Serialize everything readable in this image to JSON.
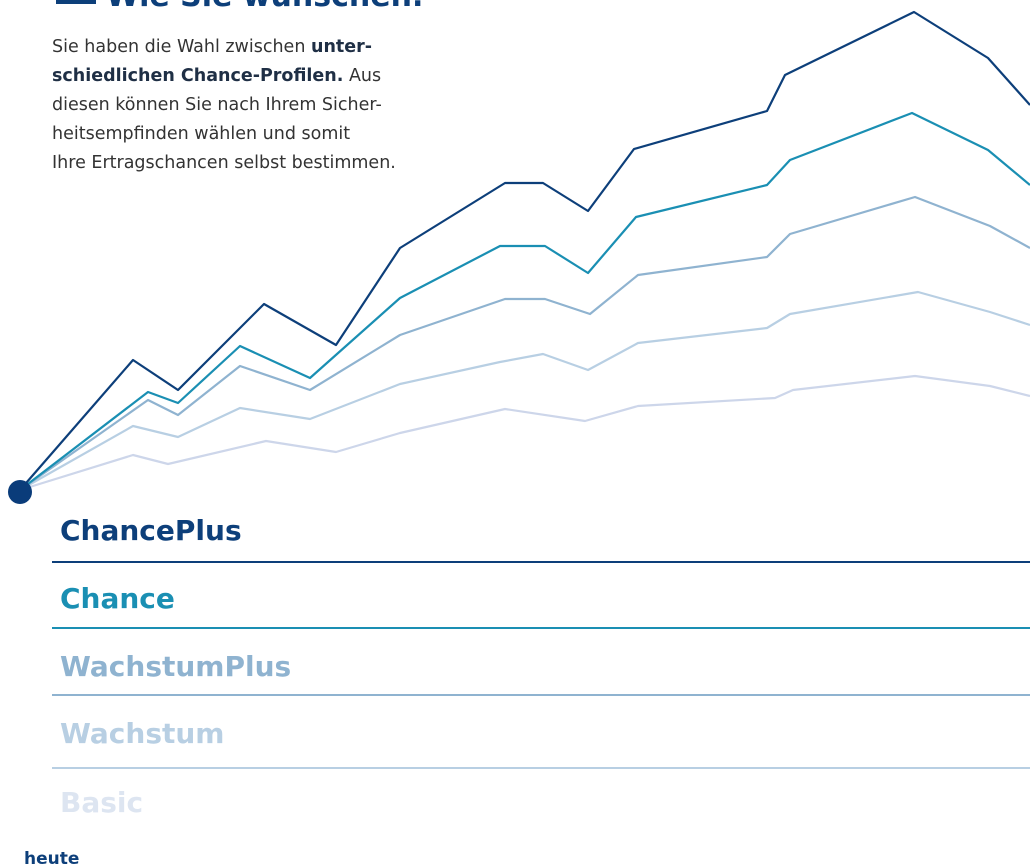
{
  "heading": "Wie Sie wünschen.",
  "intro": {
    "lines": [
      [
        "Sie haben die Wahl zwischen ",
        "unter-"
      ],
      [
        "schiedlichen Chance-Profilen.",
        " Aus"
      ],
      [
        "diesen können Sie nach Ihrem Sicher-"
      ],
      [
        "heitsempfinden wählen und somit"
      ],
      [
        "Ihre Ertragschancen selbst bestimmen."
      ]
    ]
  },
  "profiles": [
    "ChancePlus",
    "Chance",
    "WachstumPlus",
    "Wachstum",
    "Basic"
  ],
  "start_label": "heute"
}
